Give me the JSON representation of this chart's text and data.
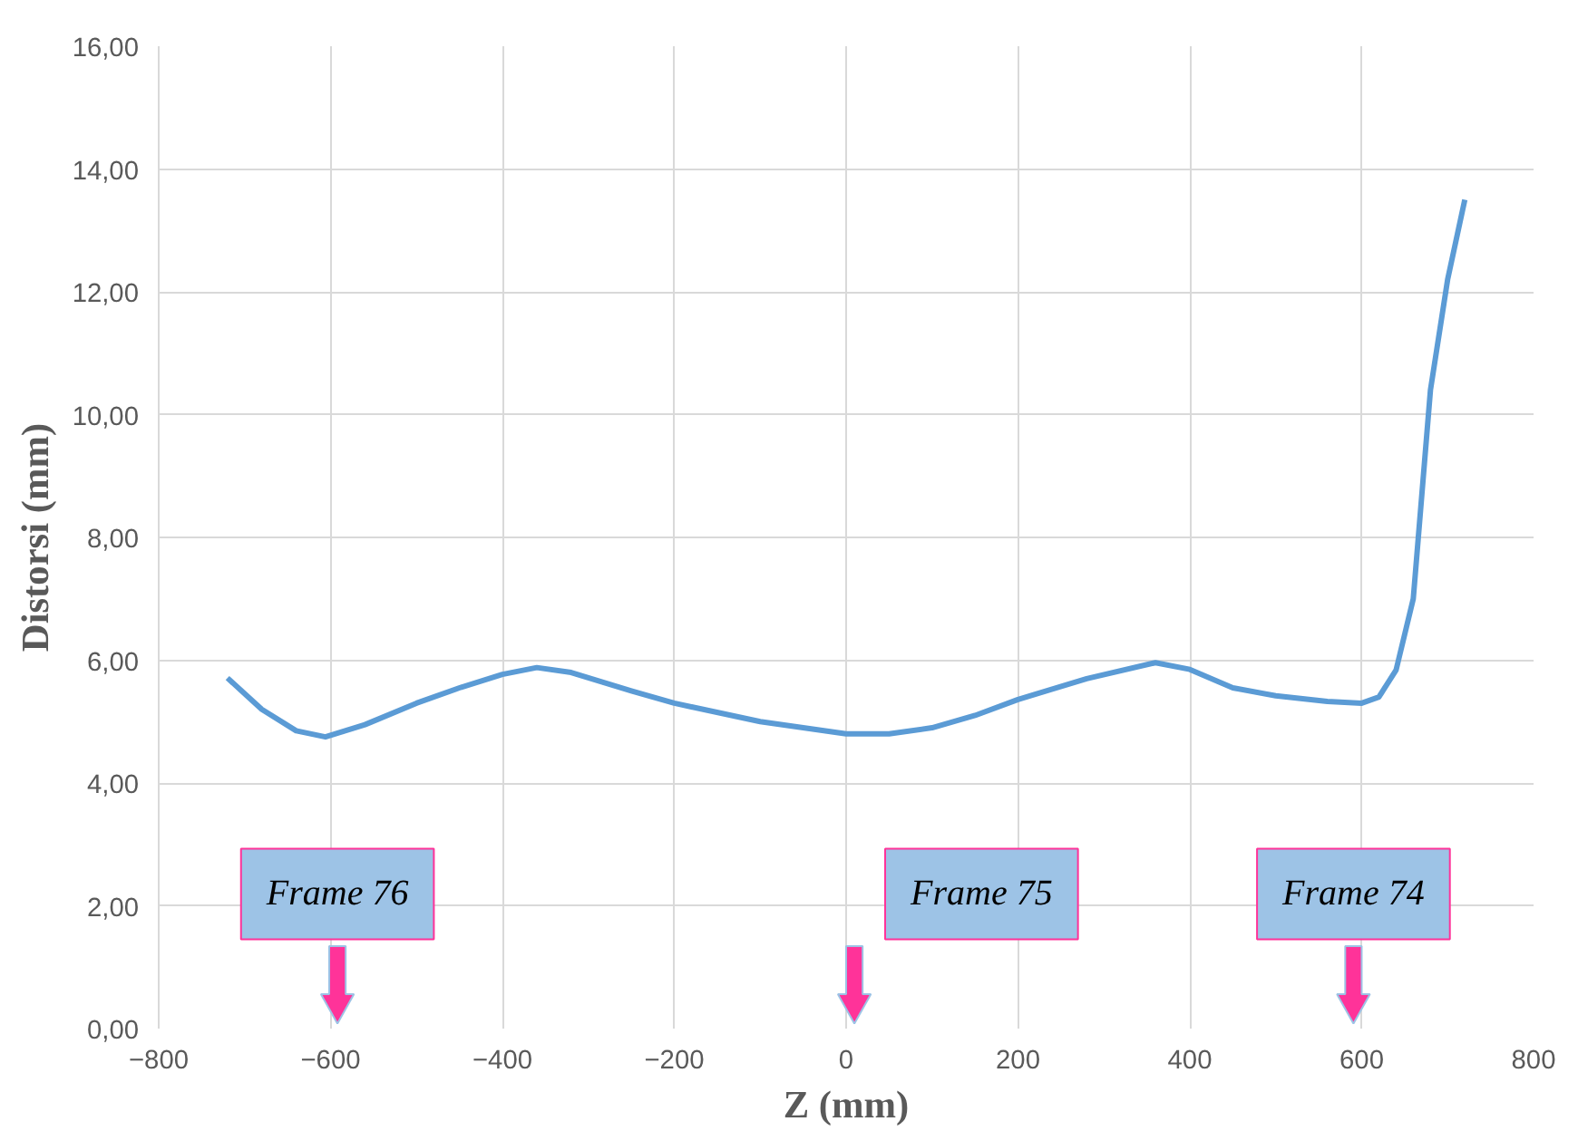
{
  "chart_data": {
    "type": "line",
    "xlabel": "Z (mm)",
    "ylabel": "Distorsi (mm)",
    "x": [
      -720,
      -680,
      -640,
      -606,
      -560,
      -500,
      -450,
      -400,
      -360,
      -320,
      -250,
      -200,
      -100,
      0,
      50,
      100,
      150,
      200,
      280,
      360,
      400,
      450,
      500,
      560,
      600,
      620,
      640,
      660,
      680,
      700,
      720
    ],
    "series": [
      {
        "color": "#5b9bd5",
        "values": [
          5.71,
          5.2,
          4.85,
          4.75,
          4.95,
          5.3,
          5.55,
          5.77,
          5.88,
          5.8,
          5.5,
          5.3,
          5.0,
          4.8,
          4.8,
          4.9,
          5.1,
          5.36,
          5.7,
          5.96,
          5.85,
          5.55,
          5.42,
          5.33,
          5.3,
          5.4,
          5.84,
          7.0,
          10.4,
          12.2,
          13.5
        ]
      }
    ],
    "xlim": [
      -800,
      800
    ],
    "xticks": [
      -800,
      -600,
      -400,
      -200,
      0,
      200,
      400,
      600,
      800
    ],
    "ylim": [
      0,
      16
    ],
    "yticks": [
      {
        "value": 0,
        "label": "0,00"
      },
      {
        "value": 2,
        "label": "2,00"
      },
      {
        "value": 4,
        "label": "4,00"
      },
      {
        "value": 6,
        "label": "6,00"
      },
      {
        "value": 8,
        "label": "8,00"
      },
      {
        "value": 10,
        "label": "10,00"
      },
      {
        "value": 12,
        "label": "12,00"
      },
      {
        "value": 14,
        "label": "14,00"
      },
      {
        "value": 16,
        "label": "16,00"
      }
    ],
    "grid": true,
    "marker": "none",
    "line_style": "solid",
    "annotations": [
      "Frame 76",
      "Frame 75",
      "Frame 74"
    ]
  }
}
